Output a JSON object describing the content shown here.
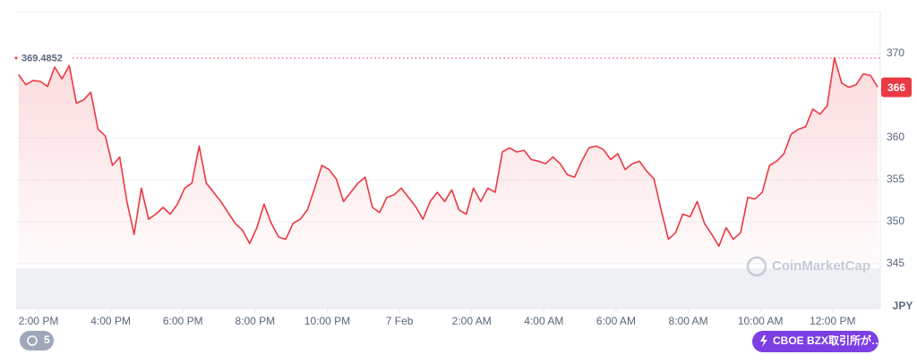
{
  "chart_data": {
    "type": "line",
    "color": "#ea3943",
    "y_unit": "JPY",
    "reference": 369.4852,
    "current_price": 366,
    "x": [
      13.45,
      13.65,
      13.85,
      14.05,
      14.25,
      14.45,
      14.65,
      14.85,
      15.05,
      15.25,
      15.45,
      15.65,
      15.85,
      16.05,
      16.25,
      16.45,
      16.65,
      16.85,
      17.05,
      17.25,
      17.45,
      17.65,
      17.85,
      18.05,
      18.25,
      18.45,
      18.65,
      18.85,
      19.05,
      19.25,
      19.45,
      19.65,
      19.85,
      20.05,
      20.25,
      20.45,
      20.65,
      20.85,
      21.05,
      21.25,
      21.45,
      21.65,
      21.85,
      22.05,
      22.25,
      22.45,
      22.65,
      22.85,
      23.05,
      23.25,
      23.45,
      23.65,
      23.85,
      24.05,
      24.25,
      24.45,
      24.65,
      24.85,
      25.05,
      25.25,
      25.45,
      25.65,
      25.85,
      26.05,
      26.25,
      26.45,
      26.65,
      26.85,
      27.05,
      27.25,
      27.45,
      27.65,
      27.85,
      28.05,
      28.25,
      28.45,
      28.65,
      28.85,
      29.05,
      29.25,
      29.45,
      29.65,
      29.85,
      30.05,
      30.25,
      30.45,
      30.65,
      30.85,
      31.05,
      31.25,
      31.45,
      31.65,
      31.85,
      32.05,
      32.25,
      32.45,
      32.65,
      32.85,
      33.05,
      33.25,
      33.45,
      33.65,
      33.85,
      34.05,
      34.25,
      34.45,
      34.65,
      34.85,
      35.05,
      35.25,
      35.45,
      35.65,
      35.85,
      36.05,
      36.25,
      36.45,
      36.65,
      36.85,
      37.05,
      37.25
    ],
    "values": [
      367.5,
      366.3,
      366.8,
      366.7,
      366.1,
      368.4,
      367.0,
      368.6,
      364.1,
      364.5,
      365.4,
      361.0,
      360.2,
      356.7,
      357.7,
      352.4,
      348.5,
      354.0,
      350.3,
      350.9,
      351.7,
      350.9,
      352.1,
      354.0,
      354.6,
      359.0,
      354.6,
      353.5,
      352.4,
      351.1,
      349.8,
      349.0,
      347.4,
      349.3,
      352.1,
      349.8,
      348.2,
      347.9,
      349.8,
      350.3,
      351.4,
      354.0,
      356.7,
      356.2,
      355.1,
      352.4,
      353.5,
      354.6,
      355.3,
      351.7,
      351.1,
      352.9,
      353.2,
      354.0,
      352.9,
      351.8,
      350.3,
      352.4,
      353.5,
      352.4,
      353.8,
      351.4,
      350.9,
      354.0,
      352.4,
      354.0,
      353.5,
      358.3,
      358.8,
      358.3,
      358.5,
      357.4,
      357.2,
      356.9,
      357.7,
      356.9,
      355.6,
      355.3,
      357.2,
      358.8,
      359.0,
      358.6,
      357.4,
      358.1,
      356.2,
      356.9,
      357.2,
      356.0,
      355.1,
      351.4,
      347.9,
      348.7,
      350.9,
      350.6,
      352.4,
      349.8,
      348.5,
      347.1,
      349.3,
      347.9,
      348.7,
      352.9,
      352.7,
      353.5,
      356.7,
      357.2,
      358.1,
      360.4,
      361.0,
      361.3,
      363.4,
      362.8,
      363.8,
      369.5,
      366.5,
      366.0,
      366.3,
      367.6,
      367.4,
      366.0
    ],
    "xlim": [
      13.38,
      37.32
    ],
    "ylim": [
      345,
      375
    ],
    "xticks": [
      {
        "value": 14,
        "label": "2:00 PM"
      },
      {
        "value": 16,
        "label": "4:00 PM"
      },
      {
        "value": 18,
        "label": "6:00 PM"
      },
      {
        "value": 20,
        "label": "8:00 PM"
      },
      {
        "value": 22,
        "label": "10:00 PM"
      },
      {
        "value": 24,
        "label": "7 Feb"
      },
      {
        "value": 26,
        "label": "2:00 AM"
      },
      {
        "value": 28,
        "label": "4:00 AM"
      },
      {
        "value": 30,
        "label": "6:00 AM"
      },
      {
        "value": 32,
        "label": "8:00 AM"
      },
      {
        "value": 34,
        "label": "10:00 AM"
      },
      {
        "value": 36,
        "label": "12:00 PM"
      }
    ],
    "yticks": [
      345,
      350,
      355,
      360,
      370
    ],
    "grid": true
  },
  "watermark": "CoinMarketCap",
  "ui": {
    "history_badge": "5",
    "exchange_badge": "CBOE BZX取引所が…"
  }
}
